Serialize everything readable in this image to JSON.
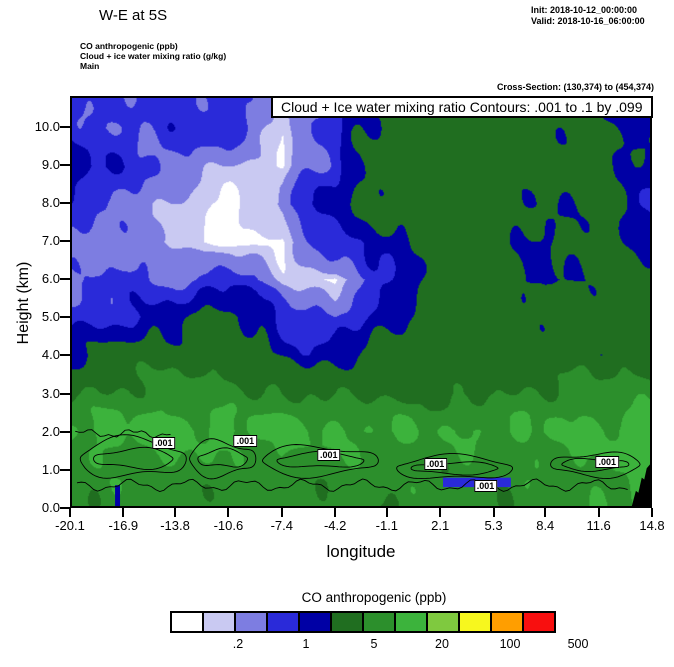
{
  "header": {
    "title": "W-E at 5S",
    "init_line": "Init: 2018-10-12_00:00:00",
    "valid_line": "Valid: 2018-10-16_06:00:00",
    "field_lines": [
      "CO anthropogenic  (ppb)",
      "Cloud + ice water mixing ratio  (g/kg)",
      "Main"
    ],
    "cross_section": "Cross-Section: (130,374) to (454,374)"
  },
  "plot": {
    "inner_title": "Cloud + Ice water mixing ratio Contours: .001 to .1 by .099",
    "ylabel": "Height (km)",
    "xlabel": "longitude",
    "y_ticks": [
      "0.0",
      "1.0",
      "2.0",
      "3.0",
      "4.0",
      "5.0",
      "6.0",
      "7.0",
      "8.0",
      "9.0",
      "10.0"
    ],
    "x_ticks": [
      "-20.1",
      "-16.9",
      "-13.8",
      "-10.6",
      "-7.4",
      "-4.2",
      "-1.1",
      "2.1",
      "5.3",
      "8.4",
      "11.6",
      "14.8"
    ]
  },
  "legend": {
    "title": "CO anthropogenic  (ppb)",
    "labels": [
      ".2",
      "1",
      "5",
      "20",
      "100",
      "500"
    ]
  },
  "chart_data": {
    "type": "heatmap",
    "title": "W-E at 5S cross-section of CO anthropogenic (ppb) with Cloud + Ice water mixing ratio contours (.001 to .1 by .099)",
    "xlabel": "longitude",
    "ylabel": "Height (km)",
    "xlim": [
      -20.1,
      14.8
    ],
    "ylim": [
      0,
      10.8
    ],
    "x_longitude": [
      -20.1,
      -16.9,
      -13.8,
      -10.6,
      -7.4,
      -4.2,
      -1.1,
      2.1,
      5.3,
      8.4,
      11.6,
      14.8
    ],
    "y_height_km": [
      0,
      1,
      2,
      3,
      4,
      5,
      6,
      7,
      8,
      9,
      10,
      10.8
    ],
    "co_ppb_grid": [
      [
        6,
        7,
        7,
        7,
        6,
        6,
        6,
        6,
        6,
        7,
        8,
        12
      ],
      [
        7,
        8,
        8,
        7,
        7,
        7,
        7,
        7,
        7,
        8,
        9,
        13
      ],
      [
        12,
        13,
        13,
        12,
        12,
        11,
        11,
        9,
        10,
        11,
        12,
        13
      ],
      [
        4,
        6,
        7,
        6,
        5,
        4,
        3.5,
        3.5,
        4,
        6,
        6,
        7
      ],
      [
        1.5,
        3,
        3,
        3,
        1.5,
        1.2,
        3,
        3,
        3,
        3,
        3,
        3.5
      ],
      [
        0.7,
        0.7,
        1.5,
        3,
        0.7,
        0.4,
        1.5,
        3,
        3,
        3,
        3,
        3
      ],
      [
        0.3,
        0.7,
        0.3,
        0.7,
        0.15,
        0.08,
        0.7,
        3,
        3,
        1.5,
        3,
        3
      ],
      [
        0.4,
        0.3,
        0.15,
        0.05,
        0.08,
        0.7,
        1.5,
        3,
        3,
        1.5,
        3,
        1.5
      ],
      [
        0.7,
        0.4,
        0.15,
        0.05,
        0.3,
        1.5,
        3,
        3,
        3,
        2,
        3,
        0.7
      ],
      [
        1.5,
        0.7,
        0.4,
        0.15,
        0.1,
        0.7,
        3,
        3,
        3,
        3,
        3,
        1.5
      ],
      [
        0.7,
        0.5,
        0.7,
        0.7,
        0.08,
        0.7,
        3,
        3,
        3,
        3,
        2,
        1.5
      ],
      [
        0.7,
        0.5,
        0.7,
        0.7,
        0.08,
        0.7,
        3,
        3,
        3,
        3,
        2,
        1.5
      ]
    ],
    "levels_ppb": [
      0.1,
      0.2,
      0.5,
      1,
      2,
      5,
      10,
      20,
      50,
      100,
      200
    ],
    "band_colors": [
      "#ffffff",
      "#c9c9f2",
      "#7d7de1",
      "#2a2ad9",
      "#0000a5",
      "#206e20",
      "#2c8f2c",
      "#3cb33c",
      "#7fc93f",
      "#f7f71e",
      "#ff9e00",
      "#f80f0f"
    ],
    "legend_boundary_labels": [
      ".2",
      "1",
      "5",
      "20",
      "100",
      "500"
    ],
    "cloud_contours": {
      "value_label": ".001",
      "contour_spec": ".001 to .1 by .099",
      "label_points": [
        {
          "lon": -14.6,
          "h": 1.75
        },
        {
          "lon": -9.7,
          "h": 1.8
        },
        {
          "lon": -4.7,
          "h": 1.45
        },
        {
          "lon": 1.7,
          "h": 1.2
        },
        {
          "lon": 4.7,
          "h": 0.63
        },
        {
          "lon": 12.0,
          "h": 1.27
        }
      ],
      "loops": [
        {
          "cx": -16.4,
          "cy": 1.25,
          "rx": 3.2,
          "ry": 0.5
        },
        {
          "cx": -11.0,
          "cy": 1.25,
          "rx": 2.0,
          "ry": 0.45
        },
        {
          "cx": -5.1,
          "cy": 1.2,
          "rx": 3.5,
          "ry": 0.38
        },
        {
          "cx": 3.0,
          "cy": 1.0,
          "rx": 3.5,
          "ry": 0.3
        },
        {
          "cx": 11.5,
          "cy": 1.1,
          "rx": 2.7,
          "ry": 0.3
        }
      ],
      "lines": [
        {
          "x0": -19.8,
          "x1": 13.6,
          "h": 0.55,
          "amp": 0.12,
          "freq": 1.8
        },
        {
          "x0": -19.9,
          "x1": -13.9,
          "h": 1.92,
          "amp": 0.08,
          "freq": 2.2
        }
      ]
    },
    "patches": [
      {
        "x0": 2.3,
        "x1": 6.4,
        "y0": 0.5,
        "y1": 0.75,
        "color": "#2a2ad9"
      },
      {
        "x0": -17.5,
        "x1": -17.2,
        "y0": 0,
        "y1": 0.55,
        "color": "#0000a5"
      }
    ],
    "terrain_black": [
      [
        13.7,
        0
      ],
      [
        13.95,
        0.4
      ],
      [
        14.1,
        0.35
      ],
      [
        14.3,
        0.75
      ],
      [
        14.45,
        0.7
      ],
      [
        14.6,
        1.0
      ],
      [
        14.8,
        1.1
      ],
      [
        14.8,
        0
      ]
    ]
  }
}
